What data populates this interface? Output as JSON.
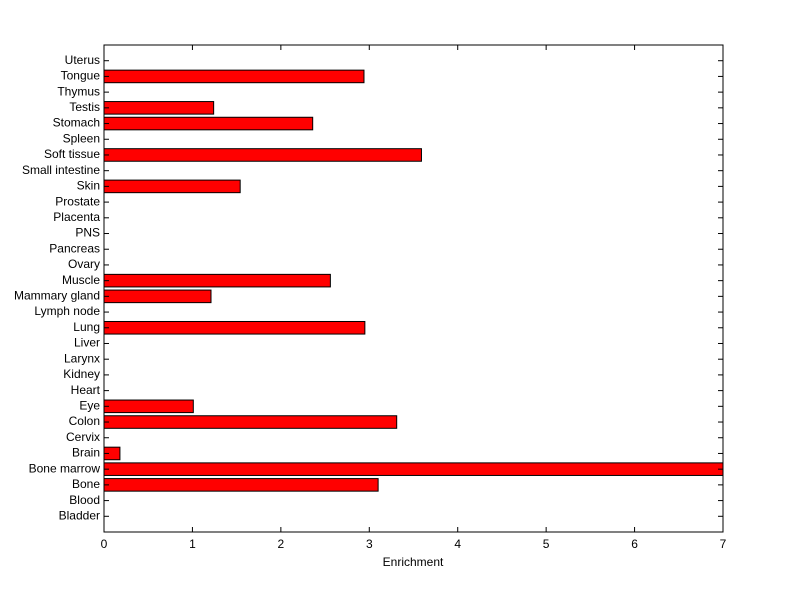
{
  "chart_data": {
    "type": "barh",
    "xlabel": "Enrichment",
    "categories": [
      "Bladder",
      "Blood",
      "Bone",
      "Bone marrow",
      "Brain",
      "Cervix",
      "Colon",
      "Eye",
      "Heart",
      "Kidney",
      "Larynx",
      "Liver",
      "Lung",
      "Lymph node",
      "Mammary gland",
      "Muscle",
      "Ovary",
      "Pancreas",
      "PNS",
      "Placenta",
      "Prostate",
      "Skin",
      "Small intestine",
      "Soft tissue",
      "Spleen",
      "Stomach",
      "Testis",
      "Thymus",
      "Tongue",
      "Uterus"
    ],
    "values": [
      0,
      0,
      3.1,
      7,
      0.18,
      0,
      3.31,
      1.01,
      0,
      0,
      0,
      0,
      2.95,
      0,
      1.21,
      2.56,
      0,
      0,
      0,
      0,
      0,
      1.54,
      0,
      3.59,
      0,
      2.36,
      1.24,
      0,
      2.94,
      0
    ],
    "color": "#ff0000",
    "xlim": [
      0,
      7
    ],
    "xticks": [
      0,
      1,
      2,
      3,
      4,
      5,
      6,
      7
    ]
  }
}
